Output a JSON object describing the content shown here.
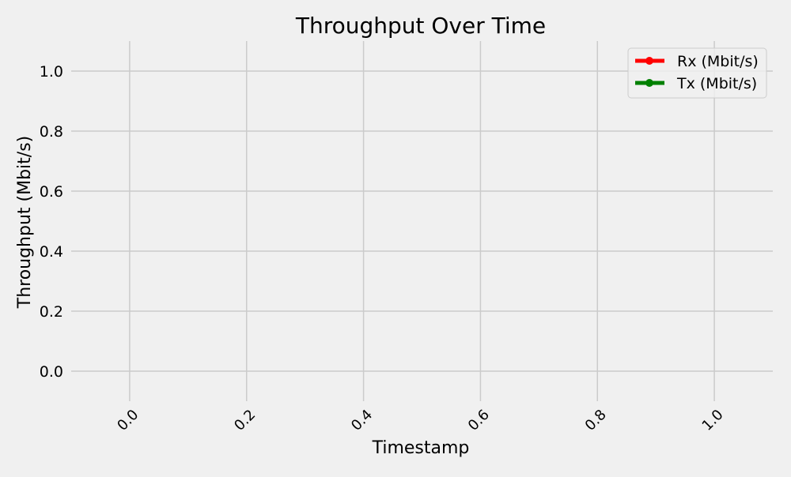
{
  "chart_data": {
    "type": "line",
    "title": "Throughput Over Time",
    "xlabel": "Timestamp",
    "ylabel": "Throughput (Mbit/s)",
    "xlim": [
      -0.1,
      1.1
    ],
    "ylim": [
      -0.1,
      1.1
    ],
    "xticks": [
      "0.0",
      "0.2",
      "0.4",
      "0.6",
      "0.8",
      "1.0"
    ],
    "yticks": [
      "0.0",
      "0.2",
      "0.4",
      "0.6",
      "0.8",
      "1.0"
    ],
    "xtick_values": [
      0.0,
      0.2,
      0.4,
      0.6,
      0.8,
      1.0
    ],
    "ytick_values": [
      0.0,
      0.2,
      0.4,
      0.6,
      0.8,
      1.0
    ],
    "grid": true,
    "legend_position": "top-right",
    "series": [
      {
        "name": "Rx (Mbit/s)",
        "color": "#ff0000",
        "x": [],
        "y": []
      },
      {
        "name": "Tx (Mbit/s)",
        "color": "#008000",
        "x": [],
        "y": []
      }
    ],
    "colors": {
      "background": "#f0f0f0",
      "grid": "#cbcbcb",
      "text": "#000000"
    }
  }
}
